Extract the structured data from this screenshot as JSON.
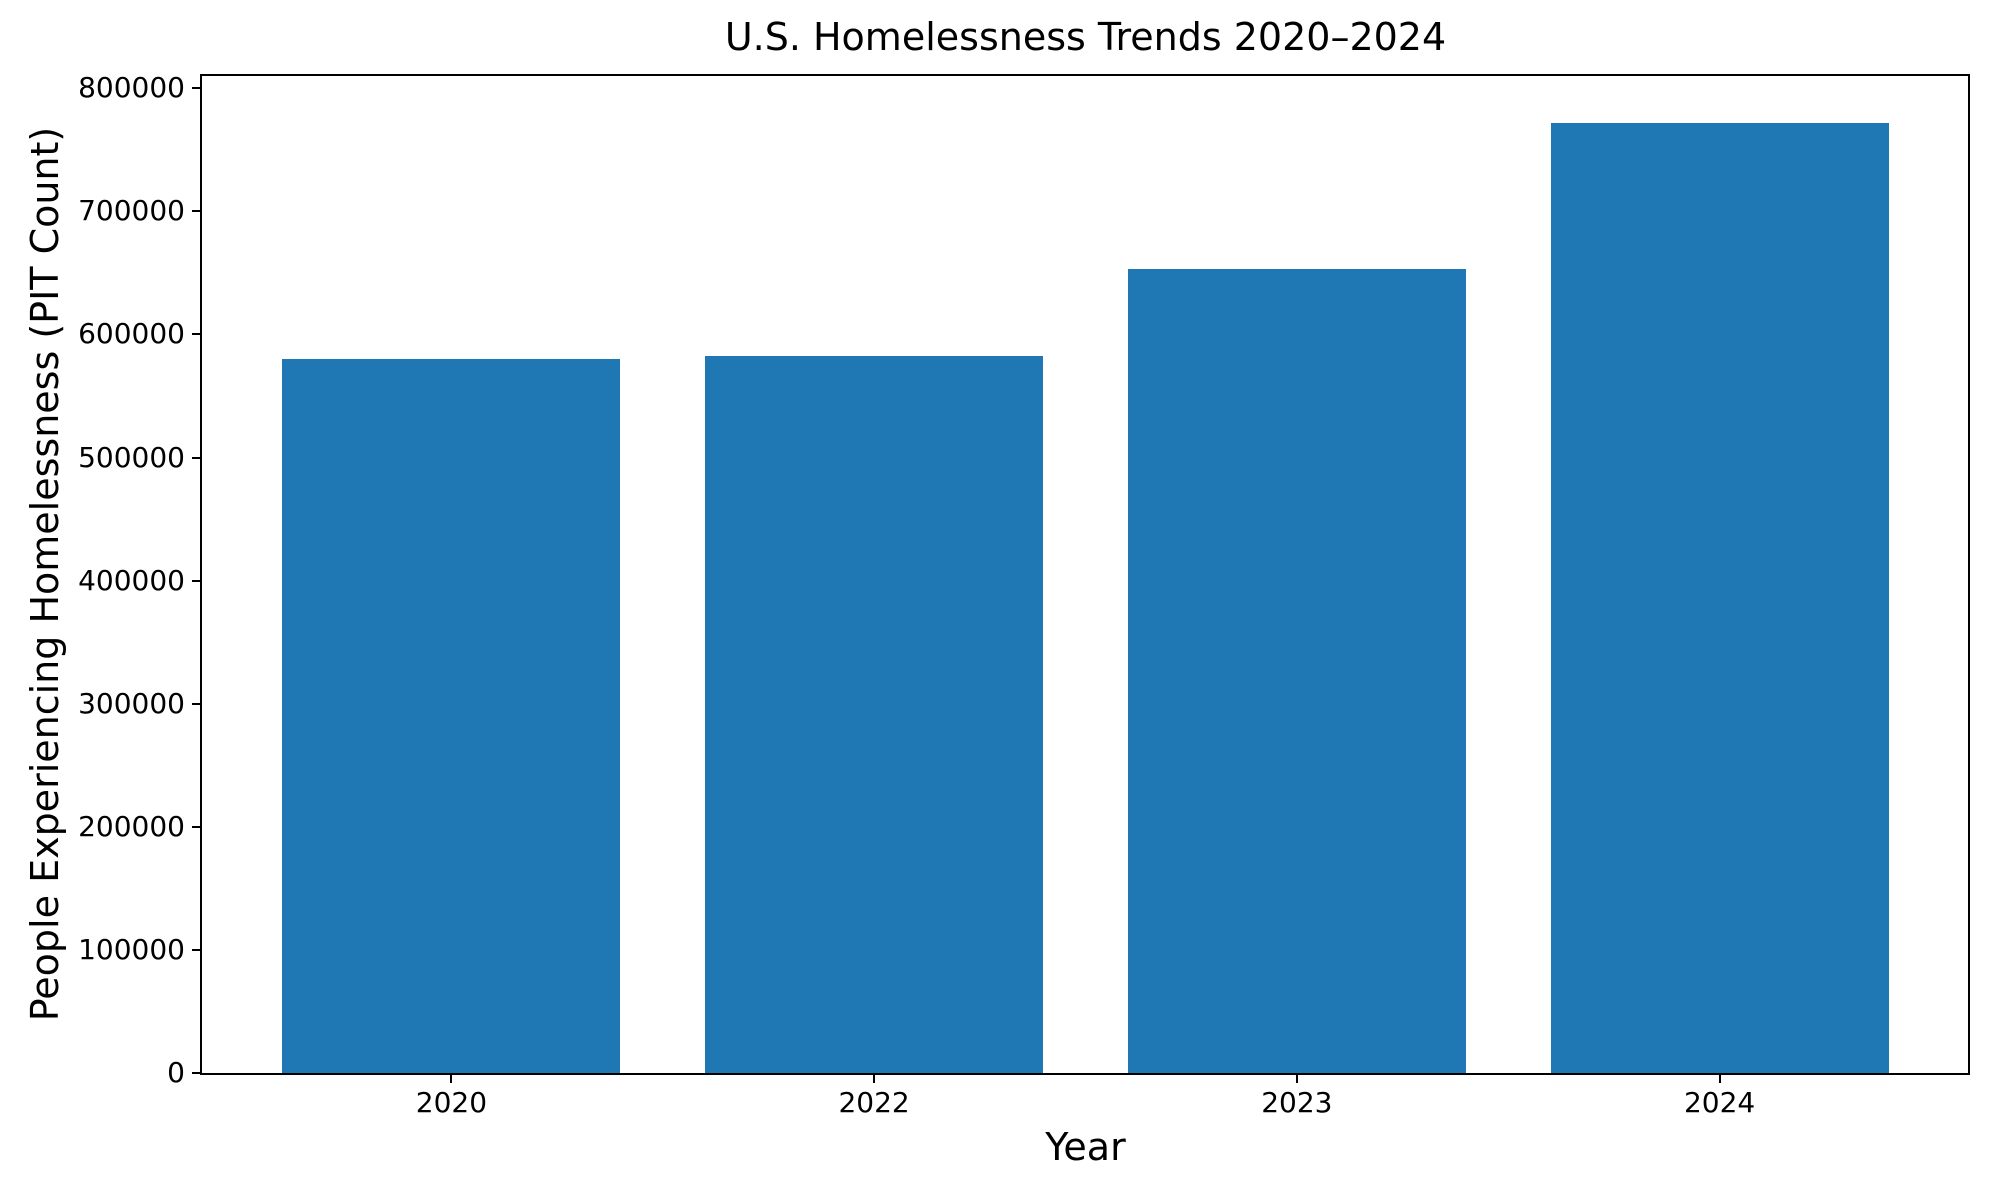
{
  "chart_data": {
    "type": "bar",
    "title": "U.S. Homelessness Trends 2020–2024",
    "xlabel": "Year",
    "ylabel": "People Experiencing Homelessness (PIT Count)",
    "categories": [
      "2020",
      "2022",
      "2023",
      "2024"
    ],
    "values": [
      580466,
      582462,
      653104,
      771480
    ],
    "bar_color": "#1f77b4",
    "axis_color": "#000000",
    "background_color": "#ffffff",
    "ylim": [
      0,
      810000
    ],
    "yticks": [
      0,
      100000,
      200000,
      300000,
      400000,
      500000,
      600000,
      700000,
      800000
    ],
    "ytick_labels": [
      "0",
      "100000",
      "200000",
      "300000",
      "400000",
      "500000",
      "600000",
      "700000",
      "800000"
    ],
    "grid": false,
    "legend": false,
    "bar_width_fraction": 0.8
  }
}
